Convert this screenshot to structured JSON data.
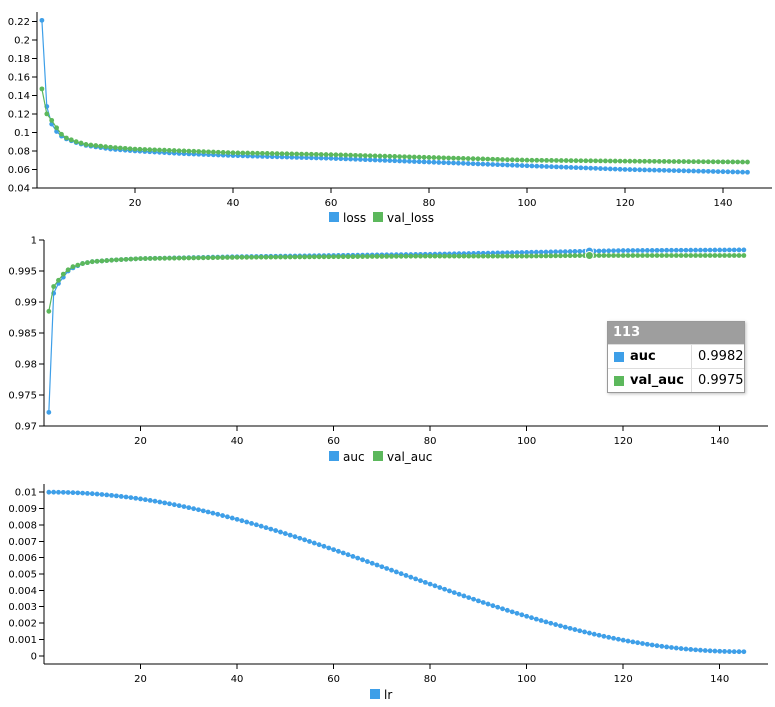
{
  "colors": {
    "blue": "#3e9fe8",
    "green": "#5cb85c"
  },
  "chart_data": [
    {
      "type": "line",
      "x_start": 1,
      "x_end": 145,
      "xlim": [
        0,
        150
      ],
      "ylim": [
        0.04,
        0.23
      ],
      "xticks": [
        20,
        40,
        60,
        80,
        100,
        120,
        140
      ],
      "yticks": [
        0.04,
        0.06,
        0.08,
        0.1,
        0.12,
        0.14,
        0.16,
        0.18,
        0.2,
        0.22
      ],
      "ytick_labels": [
        "0.04",
        "0.06",
        "0.08",
        "0.1",
        "0.12",
        "0.14",
        "0.16",
        "0.18",
        "0.2",
        "0.22"
      ],
      "series": [
        {
          "name": "loss",
          "color": "#3e9fe8",
          "anchors": [
            [
              1,
              0.221
            ],
            [
              2,
              0.128
            ],
            [
              3,
              0.109
            ],
            [
              4,
              0.101
            ],
            [
              5,
              0.096
            ],
            [
              6,
              0.093
            ],
            [
              8,
              0.089
            ],
            [
              10,
              0.086
            ],
            [
              15,
              0.082
            ],
            [
              20,
              0.08
            ],
            [
              30,
              0.077
            ],
            [
              40,
              0.075
            ],
            [
              60,
              0.072
            ],
            [
              80,
              0.068
            ],
            [
              100,
              0.064
            ],
            [
              120,
              0.06
            ],
            [
              145,
              0.057
            ]
          ]
        },
        {
          "name": "val_loss",
          "color": "#5cb85c",
          "anchors": [
            [
              1,
              0.147
            ],
            [
              2,
              0.12
            ],
            [
              3,
              0.113
            ],
            [
              4,
              0.105
            ],
            [
              5,
              0.098
            ],
            [
              6,
              0.094
            ],
            [
              8,
              0.09
            ],
            [
              10,
              0.087
            ],
            [
              15,
              0.084
            ],
            [
              20,
              0.082
            ],
            [
              30,
              0.08
            ],
            [
              40,
              0.078
            ],
            [
              60,
              0.076
            ],
            [
              80,
              0.073
            ],
            [
              100,
              0.07
            ],
            [
              120,
              0.069
            ],
            [
              145,
              0.068
            ]
          ]
        }
      ],
      "legend": [
        "loss",
        "val_loss"
      ]
    },
    {
      "type": "line",
      "x_start": 1,
      "x_end": 145,
      "xlim": [
        0,
        150
      ],
      "ylim": [
        0.97,
        1.0
      ],
      "xticks": [
        20,
        40,
        60,
        80,
        100,
        120,
        140
      ],
      "yticks": [
        0.97,
        0.975,
        0.98,
        0.985,
        0.99,
        0.995,
        1.0
      ],
      "ytick_labels": [
        "0.97",
        "0.975",
        "0.98",
        "0.985",
        "0.99",
        "0.995",
        "1"
      ],
      "series": [
        {
          "name": "auc",
          "color": "#3e9fe8",
          "anchors": [
            [
              1,
              0.9722
            ],
            [
              2,
              0.9914
            ],
            [
              3,
              0.993
            ],
            [
              4,
              0.994
            ],
            [
              5,
              0.995
            ],
            [
              6,
              0.9955
            ],
            [
              8,
              0.9962
            ],
            [
              10,
              0.9965
            ],
            [
              15,
              0.9968
            ],
            [
              20,
              0.997
            ],
            [
              40,
              0.9973
            ],
            [
              60,
              0.9975
            ],
            [
              80,
              0.9977
            ],
            [
              100,
              0.998
            ],
            [
              113,
              0.9982
            ],
            [
              120,
              0.9983
            ],
            [
              145,
              0.9984
            ]
          ]
        },
        {
          "name": "val_auc",
          "color": "#5cb85c",
          "anchors": [
            [
              1,
              0.9885
            ],
            [
              2,
              0.9925
            ],
            [
              3,
              0.9935
            ],
            [
              4,
              0.9945
            ],
            [
              5,
              0.9952
            ],
            [
              6,
              0.9957
            ],
            [
              8,
              0.9962
            ],
            [
              10,
              0.9965
            ],
            [
              15,
              0.9968
            ],
            [
              20,
              0.997
            ],
            [
              40,
              0.9972
            ],
            [
              60,
              0.9973
            ],
            [
              80,
              0.9974
            ],
            [
              100,
              0.9974
            ],
            [
              113,
              0.9975
            ],
            [
              145,
              0.9975
            ]
          ]
        }
      ],
      "legend": [
        "auc",
        "val_auc"
      ],
      "tooltip": {
        "title": "113",
        "rows": [
          {
            "name": "auc",
            "value": "0.9982",
            "color": "#3e9fe8"
          },
          {
            "name": "val_auc",
            "value": "0.9975",
            "color": "#5cb85c"
          }
        ]
      }
    },
    {
      "type": "line",
      "x_start": 1,
      "x_end": 145,
      "xlim": [
        0,
        150
      ],
      "ylim": [
        -0.0005,
        0.0105
      ],
      "xticks": [
        20,
        40,
        60,
        80,
        100,
        120,
        140
      ],
      "yticks": [
        0,
        0.001,
        0.002,
        0.003,
        0.004,
        0.005,
        0.006,
        0.007,
        0.008,
        0.009,
        0.01
      ],
      "ytick_labels": [
        "0",
        "0.001",
        "0.002",
        "0.003",
        "0.004",
        "0.005",
        "0.006",
        "0.007",
        "0.008",
        "0.009",
        "0.01"
      ],
      "series": [
        {
          "name": "lr",
          "color": "#3e9fe8",
          "formula": "cosine",
          "peak": 0.01,
          "min": 0.00025,
          "steps": 145
        }
      ],
      "legend": [
        "lr"
      ]
    }
  ]
}
